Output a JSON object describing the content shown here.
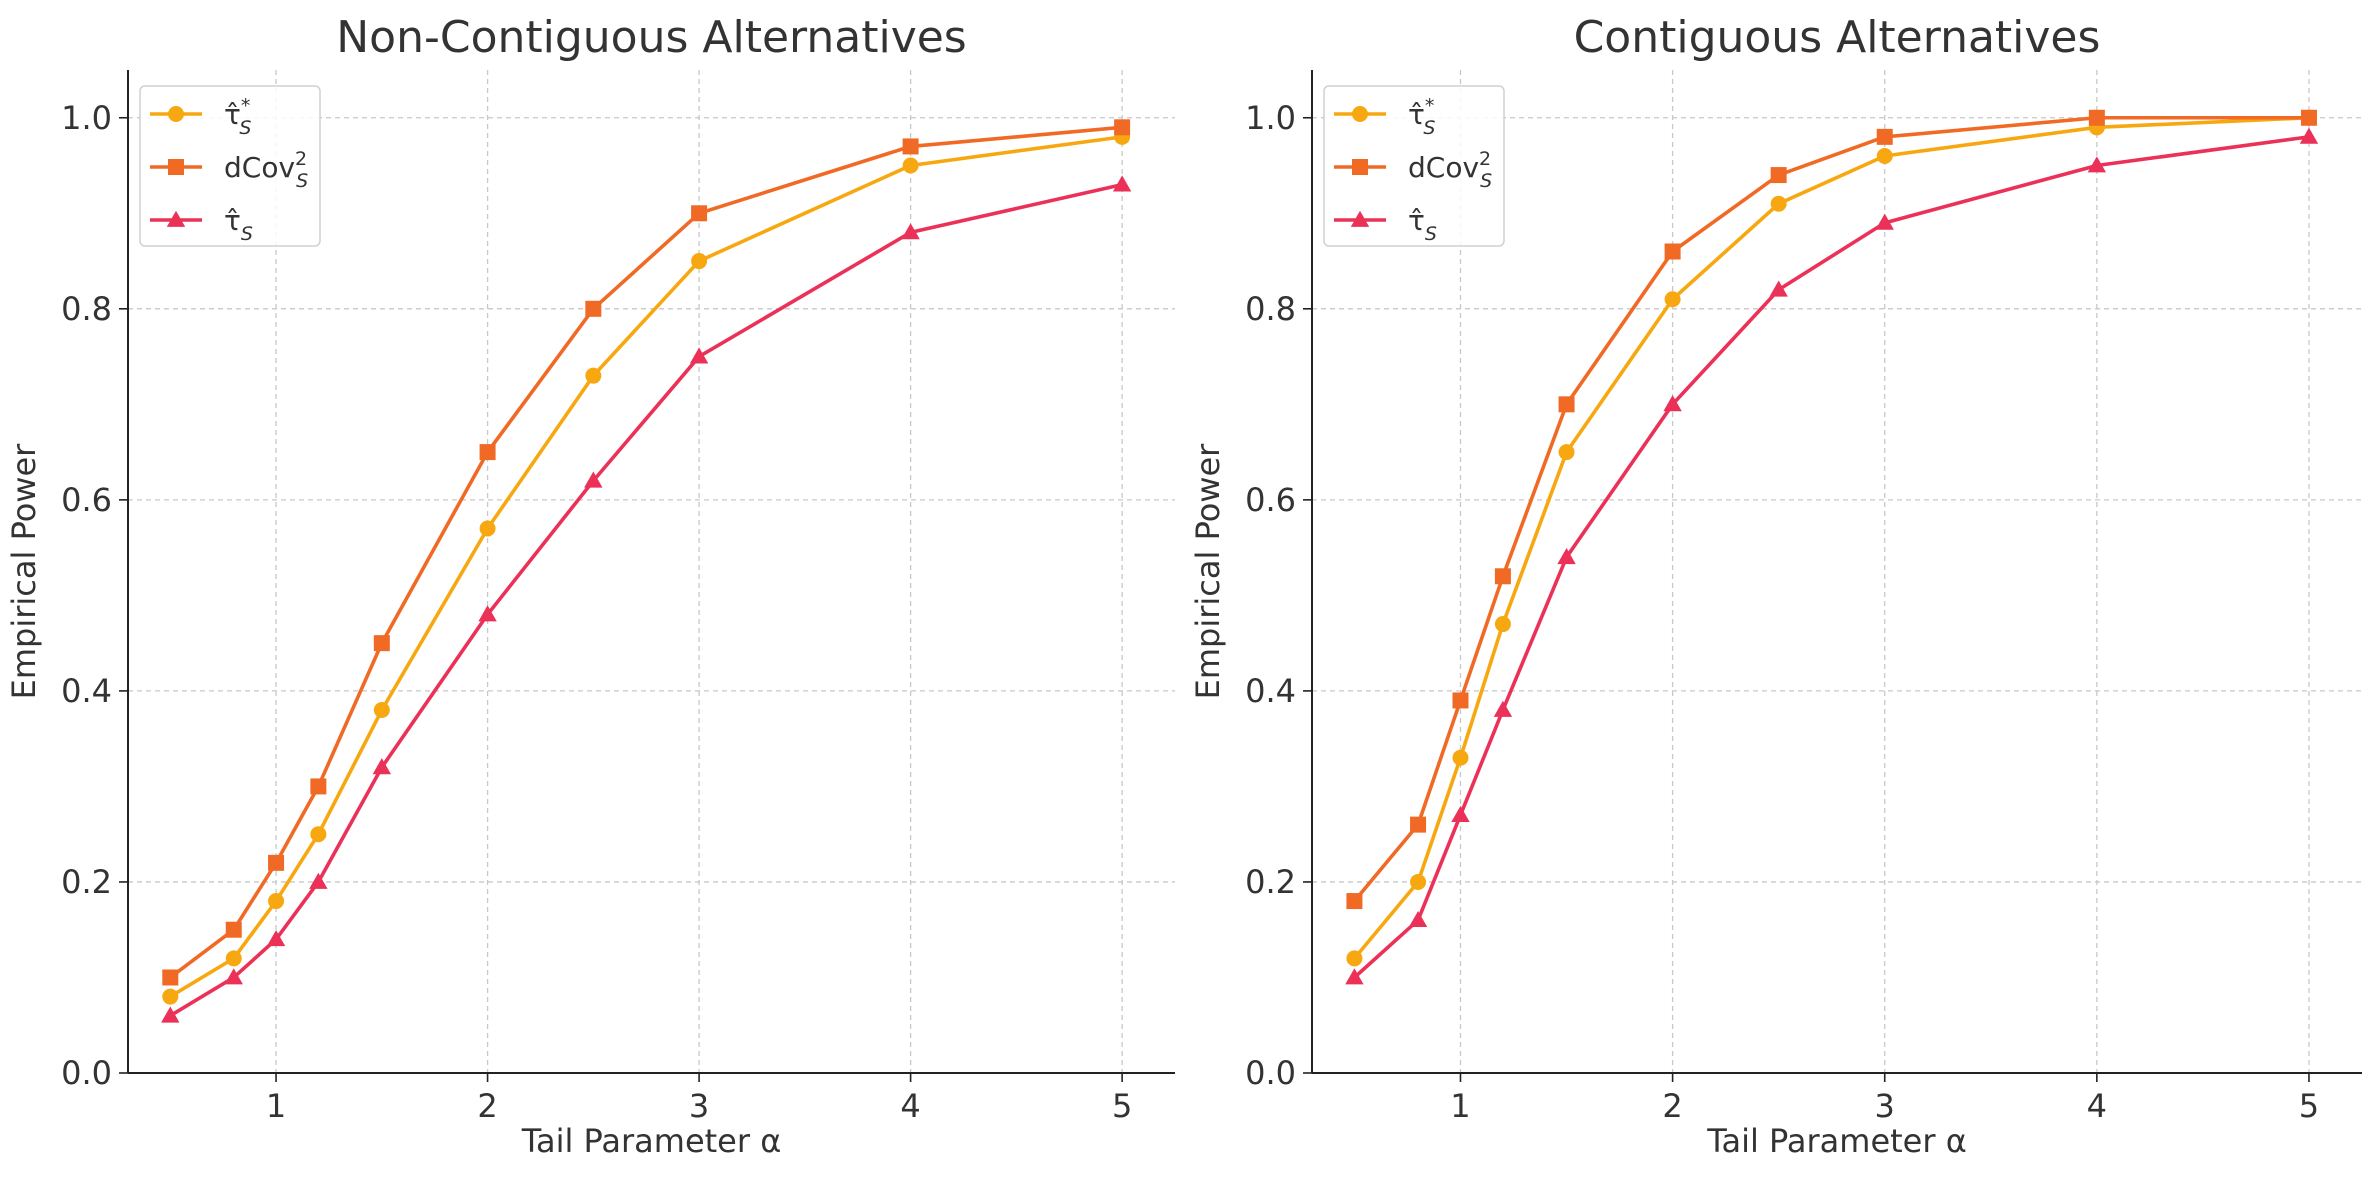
{
  "chart_data": [
    {
      "type": "line",
      "title": "Non-Contiguous Alternatives",
      "xlabel": "Tail Parameter α",
      "ylabel": "Empirical Power",
      "xlim": [
        0.3,
        5.25
      ],
      "ylim": [
        0.0,
        1.05
      ],
      "xticks": [
        1,
        2,
        3,
        4,
        5
      ],
      "yticks": [
        0.0,
        0.2,
        0.4,
        0.6,
        0.8,
        1.0
      ],
      "xtick_labels": [
        "1",
        "2",
        "3",
        "4",
        "5"
      ],
      "ytick_labels": [
        "0.0",
        "0.2",
        "0.4",
        "0.6",
        "0.8",
        "1.0"
      ],
      "grid": true,
      "legend_position": "top-left",
      "x": [
        0.5,
        0.8,
        1.0,
        1.2,
        1.5,
        2.0,
        2.5,
        3.0,
        4.0,
        5.0
      ],
      "series": [
        {
          "name": "τ̂*S",
          "legend_base": "τ̂",
          "legend_sup": "*",
          "legend_sub": "S",
          "color": "#F7A810",
          "marker": "circle",
          "values": [
            0.08,
            0.12,
            0.18,
            0.25,
            0.38,
            0.57,
            0.73,
            0.85,
            0.95,
            0.98
          ]
        },
        {
          "name": "dCov²S",
          "legend_base": "dCov",
          "legend_sup": "2",
          "legend_sub": "S",
          "color": "#F06A25",
          "marker": "square",
          "values": [
            0.1,
            0.15,
            0.22,
            0.3,
            0.45,
            0.65,
            0.8,
            0.9,
            0.97,
            0.99
          ]
        },
        {
          "name": "τ̂S",
          "legend_base": "τ̂",
          "legend_sup": "",
          "legend_sub": "S",
          "color": "#EC3158",
          "marker": "triangle",
          "values": [
            0.06,
            0.1,
            0.14,
            0.2,
            0.32,
            0.48,
            0.62,
            0.75,
            0.88,
            0.93
          ]
        }
      ]
    },
    {
      "type": "line",
      "title": "Contiguous Alternatives",
      "xlabel": "Tail Parameter α",
      "ylabel": "Empirical Power",
      "xlim": [
        0.3,
        5.25
      ],
      "ylim": [
        0.0,
        1.05
      ],
      "xticks": [
        1,
        2,
        3,
        4,
        5
      ],
      "yticks": [
        0.0,
        0.2,
        0.4,
        0.6,
        0.8,
        1.0
      ],
      "xtick_labels": [
        "1",
        "2",
        "3",
        "4",
        "5"
      ],
      "ytick_labels": [
        "0.0",
        "0.2",
        "0.4",
        "0.6",
        "0.8",
        "1.0"
      ],
      "grid": true,
      "legend_position": "top-left",
      "x": [
        0.5,
        0.8,
        1.0,
        1.2,
        1.5,
        2.0,
        2.5,
        3.0,
        4.0,
        5.0
      ],
      "series": [
        {
          "name": "τ̂*S",
          "legend_base": "τ̂",
          "legend_sup": "*",
          "legend_sub": "S",
          "color": "#F7A810",
          "marker": "circle",
          "values": [
            0.12,
            0.2,
            0.33,
            0.47,
            0.65,
            0.81,
            0.91,
            0.96,
            0.99,
            1.0
          ]
        },
        {
          "name": "dCov²S",
          "legend_base": "dCov",
          "legend_sup": "2",
          "legend_sub": "S",
          "color": "#F06A25",
          "marker": "square",
          "values": [
            0.18,
            0.26,
            0.39,
            0.52,
            0.7,
            0.86,
            0.94,
            0.98,
            1.0,
            1.0
          ]
        },
        {
          "name": "τ̂S",
          "legend_base": "τ̂",
          "legend_sup": "",
          "legend_sub": "S",
          "color": "#EC3158",
          "marker": "triangle",
          "values": [
            0.1,
            0.16,
            0.27,
            0.38,
            0.54,
            0.7,
            0.82,
            0.89,
            0.95,
            0.98
          ]
        }
      ]
    }
  ]
}
